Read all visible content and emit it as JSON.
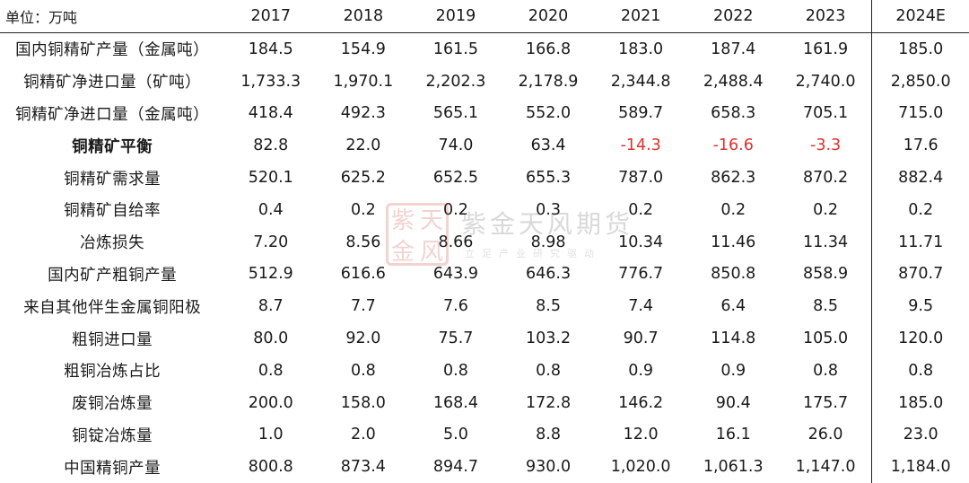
{
  "table": {
    "unit_label": "单位：万吨",
    "years": [
      "2017",
      "2018",
      "2019",
      "2020",
      "2021",
      "2022",
      "2023",
      "2024E"
    ],
    "rows": [
      {
        "label": "国内铜精矿产量（金属吨）",
        "bold": false,
        "values": [
          "184.5",
          "154.9",
          "161.5",
          "166.8",
          "183.0",
          "187.4",
          "161.9",
          "185.0"
        ]
      },
      {
        "label": "铜精矿净进口量（矿吨）",
        "bold": false,
        "values": [
          "1,733.3",
          "1,970.1",
          "2,202.3",
          "2,178.9",
          "2,344.8",
          "2,488.4",
          "2,740.0",
          "2,850.0"
        ]
      },
      {
        "label": "铜精矿净进口量（金属吨）",
        "bold": false,
        "values": [
          "418.4",
          "492.3",
          "565.1",
          "552.0",
          "589.7",
          "658.3",
          "705.1",
          "715.0"
        ]
      },
      {
        "label": "铜精矿平衡",
        "bold": true,
        "values": [
          "82.8",
          "22.0",
          "74.0",
          "63.4",
          "-14.3",
          "-16.6",
          "-3.3",
          "17.6"
        ]
      },
      {
        "label": "铜精矿需求量",
        "bold": false,
        "values": [
          "520.1",
          "625.2",
          "652.5",
          "655.3",
          "787.0",
          "862.3",
          "870.2",
          "882.4"
        ]
      },
      {
        "label": "铜精矿自给率",
        "bold": false,
        "values": [
          "0.4",
          "0.2",
          "0.2",
          "0.3",
          "0.2",
          "0.2",
          "0.2",
          "0.2"
        ]
      },
      {
        "label": "冶炼损失",
        "bold": false,
        "values": [
          "7.20",
          "8.56",
          "8.66",
          "8.98",
          "10.34",
          "11.46",
          "11.34",
          "11.71"
        ]
      },
      {
        "label": "国内矿产粗铜产量",
        "bold": false,
        "values": [
          "512.9",
          "616.6",
          "643.9",
          "646.3",
          "776.7",
          "850.8",
          "858.9",
          "870.7"
        ]
      },
      {
        "label": "来自其他伴生金属铜阳极",
        "bold": false,
        "values": [
          "8.7",
          "7.7",
          "7.6",
          "8.5",
          "7.4",
          "6.4",
          "8.5",
          "9.5"
        ]
      },
      {
        "label": "粗铜进口量",
        "bold": false,
        "values": [
          "80.0",
          "92.0",
          "75.7",
          "103.2",
          "90.7",
          "114.8",
          "105.0",
          "120.0"
        ]
      },
      {
        "label": "粗铜冶炼占比",
        "bold": false,
        "values": [
          "0.8",
          "0.8",
          "0.8",
          "0.8",
          "0.9",
          "0.9",
          "0.8",
          "0.8"
        ]
      },
      {
        "label": "废铜冶炼量",
        "bold": false,
        "values": [
          "200.0",
          "158.0",
          "168.4",
          "172.8",
          "146.2",
          "90.4",
          "175.7",
          "185.0"
        ]
      },
      {
        "label": "铜锭冶炼量",
        "bold": false,
        "values": [
          "1.0",
          "2.0",
          "5.0",
          "8.8",
          "12.0",
          "16.1",
          "26.0",
          "23.0"
        ]
      },
      {
        "label": "中国精铜产量",
        "bold": false,
        "values": [
          "800.8",
          "873.4",
          "894.7",
          "930.0",
          "1,020.0",
          "1,061.3",
          "1,147.0",
          "1,184.0"
        ]
      }
    ]
  },
  "watermark": {
    "seal_chars": [
      "紫",
      "天",
      "金",
      "风"
    ],
    "name": "紫金天风期货",
    "slogan": "立足产业研究驱动",
    "seal_color": "#c23a2e"
  },
  "colors": {
    "negative": "#e0312c",
    "text": "#1a1a1a"
  }
}
